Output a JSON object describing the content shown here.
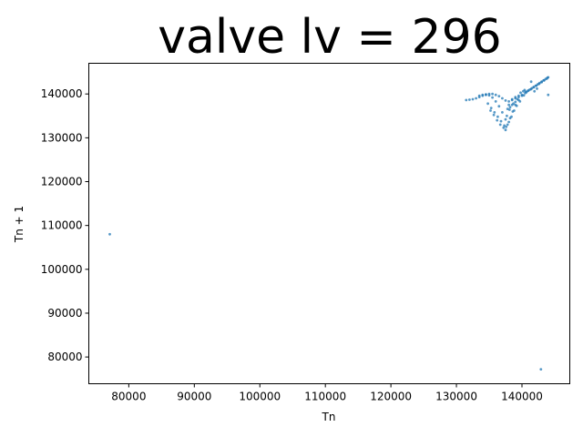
{
  "chart_data": {
    "type": "scatter",
    "title": "valve lv = 296",
    "xlabel": "Tn",
    "ylabel": "Tn + 1",
    "xlim": [
      73900,
      147300
    ],
    "ylim": [
      73900,
      147000
    ],
    "x_ticks": [
      80000,
      90000,
      100000,
      110000,
      120000,
      130000,
      140000
    ],
    "y_ticks": [
      80000,
      90000,
      100000,
      110000,
      120000,
      130000,
      140000
    ],
    "grid": false,
    "legend": "none",
    "point_color": "#1f77b4",
    "series": [
      {
        "points": [
          [
            77100,
            108000
          ],
          [
            142900,
            77200
          ],
          [
            144000,
            139800
          ],
          [
            131500,
            138600
          ],
          [
            132000,
            138700
          ],
          [
            132500,
            138800
          ],
          [
            133000,
            139000
          ],
          [
            133500,
            139300
          ],
          [
            134000,
            139600
          ],
          [
            134500,
            139800
          ],
          [
            135000,
            140000
          ],
          [
            135500,
            140000
          ],
          [
            136000,
            139800
          ],
          [
            136500,
            139500
          ],
          [
            137000,
            139000
          ],
          [
            137500,
            138500
          ],
          [
            138000,
            138300
          ],
          [
            138500,
            138600
          ],
          [
            139000,
            139000
          ],
          [
            139500,
            139300
          ],
          [
            140000,
            139600
          ],
          [
            133500,
            139600
          ],
          [
            134000,
            139800
          ],
          [
            134500,
            139900
          ],
          [
            135000,
            139700
          ],
          [
            135500,
            139200
          ],
          [
            136000,
            138300
          ],
          [
            136500,
            137200
          ],
          [
            137000,
            135800
          ],
          [
            137500,
            134200
          ],
          [
            137300,
            132800
          ],
          [
            137500,
            131800
          ],
          [
            137800,
            133000
          ],
          [
            138200,
            134500
          ],
          [
            138600,
            136000
          ],
          [
            139000,
            137500
          ],
          [
            139500,
            138600
          ],
          [
            134800,
            137800
          ],
          [
            135300,
            136800
          ],
          [
            135800,
            135800
          ],
          [
            136300,
            134800
          ],
          [
            136800,
            133800
          ],
          [
            137200,
            132300
          ],
          [
            137600,
            132500
          ],
          [
            138000,
            133600
          ],
          [
            138400,
            134800
          ],
          [
            138800,
            136200
          ],
          [
            139200,
            137300
          ],
          [
            139700,
            138300
          ],
          [
            135200,
            136200
          ],
          [
            135700,
            135200
          ],
          [
            136200,
            134000
          ],
          [
            136700,
            133000
          ],
          [
            137700,
            135000
          ],
          [
            138100,
            136400
          ],
          [
            138500,
            137500
          ],
          [
            139000,
            138200
          ],
          [
            138000,
            137500
          ],
          [
            138500,
            138800
          ],
          [
            139000,
            139300
          ],
          [
            139500,
            139600
          ],
          [
            140000,
            139800
          ],
          [
            140300,
            139700
          ],
          [
            140500,
            140200
          ],
          [
            137800,
            136600
          ],
          [
            138200,
            137000
          ],
          [
            138700,
            137800
          ],
          [
            139300,
            138800
          ],
          [
            140600,
            140500
          ],
          [
            140900,
            140700
          ],
          [
            141200,
            141000
          ],
          [
            141500,
            141300
          ],
          [
            141800,
            141600
          ],
          [
            142100,
            141900
          ],
          [
            142400,
            142200
          ],
          [
            142700,
            142500
          ],
          [
            143000,
            142800
          ],
          [
            143300,
            143100
          ],
          [
            143600,
            143400
          ],
          [
            143900,
            143700
          ],
          [
            140700,
            140400
          ],
          [
            141000,
            140800
          ],
          [
            141400,
            141100
          ],
          [
            141800,
            141500
          ],
          [
            142200,
            141900
          ],
          [
            142600,
            142300
          ],
          [
            143000,
            142700
          ],
          [
            143400,
            143100
          ],
          [
            143800,
            143500
          ],
          [
            144000,
            143800
          ],
          [
            141400,
            142800
          ],
          [
            141900,
            140600
          ],
          [
            142300,
            141200
          ],
          [
            140200,
            140600
          ],
          [
            139800,
            140300
          ],
          [
            140400,
            140900
          ]
        ]
      }
    ]
  }
}
